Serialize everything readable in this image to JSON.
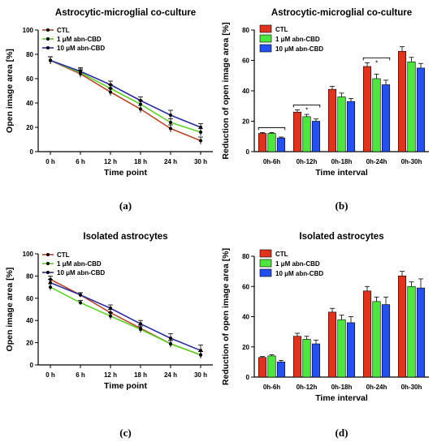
{
  "panel_labels": [
    "(a)",
    "(b)",
    "(c)",
    "(d)"
  ],
  "colors": {
    "CTL_line": "#b5462a",
    "abn1_line": "#5fcf2a",
    "abn10_line": "#2b2b9e",
    "CTL_bar": "#e0331e",
    "abn1_bar": "#4ee63e",
    "abn10_bar": "#2450f0"
  },
  "chart_data": [
    {
      "type": "line",
      "title": "Astrocytic-microglial co-culture",
      "xlabel": "Time point",
      "ylabel": "Open image area [%]",
      "categories": [
        "0 h",
        "6 h",
        "12 h",
        "18 h",
        "24 h",
        "30 h"
      ],
      "ylim": [
        0,
        100
      ],
      "yticks": [
        0,
        20,
        40,
        60,
        80,
        100
      ],
      "legend": "top-left",
      "series": [
        {
          "name": "CTL",
          "values": [
            75,
            64,
            49,
            35,
            19,
            9
          ],
          "errors": [
            3,
            3,
            3,
            3,
            3,
            3
          ]
        },
        {
          "name": "1 μM abn-CBD",
          "values": [
            75,
            65,
            52,
            39,
            24,
            16
          ],
          "errors": [
            3,
            3,
            3,
            3,
            3,
            3
          ]
        },
        {
          "name": "10 μM abn-CBD",
          "values": [
            75,
            66,
            55,
            42,
            30,
            20
          ],
          "errors": [
            3,
            3,
            3,
            3,
            4,
            3
          ]
        }
      ]
    },
    {
      "type": "bar",
      "title": "Astrocytic-microglial co-culture",
      "xlabel": "Time interval",
      "ylabel": "Reduction of open image area [%]",
      "categories": [
        "0h-6h",
        "0h-12h",
        "0h-18h",
        "0h-24h",
        "0h-30h"
      ],
      "ylim": [
        0,
        80
      ],
      "yticks": [
        0,
        20,
        40,
        60,
        80
      ],
      "legend": "top-left",
      "series": [
        {
          "name": "CTL",
          "values": [
            12,
            26,
            41,
            56,
            66
          ],
          "errors": [
            0.6,
            1.5,
            2,
            2.5,
            3
          ]
        },
        {
          "name": "1 μM abn-CBD",
          "values": [
            12,
            23,
            36,
            48,
            59
          ],
          "errors": [
            0.6,
            1.5,
            2.5,
            3,
            3
          ]
        },
        {
          "name": "10 μM abn-CBD",
          "values": [
            9,
            20,
            33,
            44,
            55
          ],
          "errors": [
            0.6,
            1.5,
            2,
            3,
            3
          ]
        }
      ],
      "significance": [
        {
          "category": "0h-6h",
          "label": ""
        },
        {
          "category": "0h-12h",
          "label": "*"
        },
        {
          "category": "0h-24h",
          "label": "*"
        }
      ]
    },
    {
      "type": "line",
      "title": "Isolated astrocytes",
      "xlabel": "Time point",
      "ylabel": "Open image area [%]",
      "categories": [
        "0 h",
        "6 h",
        "12 h",
        "18 h",
        "24 h",
        "30 h"
      ],
      "ylim": [
        0,
        100
      ],
      "yticks": [
        0,
        20,
        40,
        60,
        80,
        100
      ],
      "legend": "top-left",
      "series": [
        {
          "name": "CTL",
          "values": [
            77,
            63,
            47,
            33,
            19,
            9
          ],
          "errors": [
            3,
            2,
            3,
            3,
            3,
            3
          ]
        },
        {
          "name": "1 μM abn-CBD",
          "values": [
            70,
            56,
            44,
            32,
            19,
            9
          ],
          "errors": [
            3,
            2,
            3,
            3,
            3,
            3
          ]
        },
        {
          "name": "10 μM abn-CBD",
          "values": [
            74,
            63,
            51,
            37,
            24,
            13
          ],
          "errors": [
            3,
            2,
            3,
            3,
            4,
            5
          ]
        }
      ]
    },
    {
      "type": "bar",
      "title": "Isolated astrocytes",
      "xlabel": "Time interval",
      "ylabel": "Reduction of open image area [%]",
      "categories": [
        "0h-6h",
        "0h-12h",
        "0h-18h",
        "0h-24h",
        "0h-30h"
      ],
      "ylim": [
        0,
        80
      ],
      "yticks": [
        0,
        20,
        40,
        60,
        80
      ],
      "legend": "top-left",
      "series": [
        {
          "name": "CTL",
          "values": [
            13,
            27,
            43,
            57,
            67
          ],
          "errors": [
            0.6,
            2,
            2.5,
            3,
            3
          ]
        },
        {
          "name": "1 μM abn-CBD",
          "values": [
            14,
            25,
            38,
            50,
            60
          ],
          "errors": [
            0.8,
            2,
            3,
            3,
            3
          ]
        },
        {
          "name": "10 μM abn-CBD",
          "values": [
            10,
            22,
            36,
            48,
            59
          ],
          "errors": [
            1,
            2.5,
            4,
            5,
            6
          ]
        }
      ]
    }
  ]
}
